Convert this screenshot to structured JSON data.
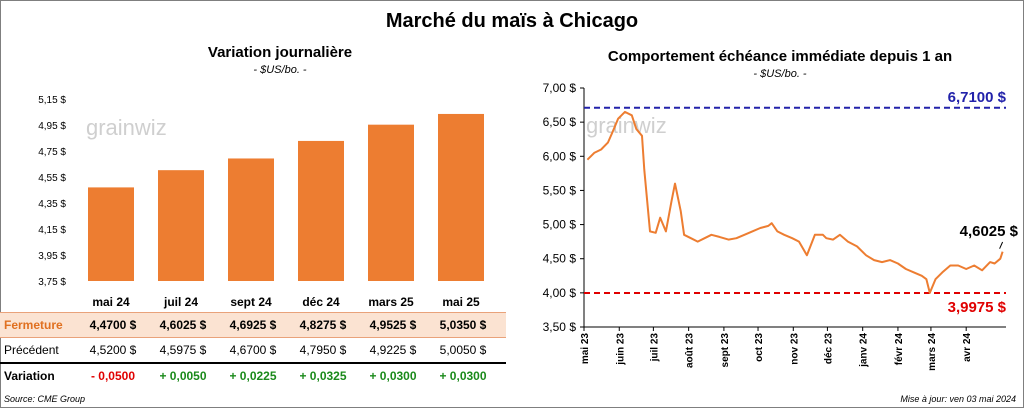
{
  "title": "Marché du maïs à Chicago",
  "left_panel": {
    "title": "Variation  journalière",
    "unit": "- $US/bo. -",
    "watermark": "grainwiz"
  },
  "right_panel": {
    "title": "Comportement  échéance immédiate depuis 1 an",
    "unit": "- $US/bo. -",
    "watermark": "grainwiz"
  },
  "table": {
    "rows": [
      {
        "label": "Fermeture",
        "values": [
          "4,4700  $",
          "4,6025  $",
          "4,6925  $",
          "4,8275  $",
          "4,9525  $",
          "5,0350  $"
        ]
      },
      {
        "label": "Précédent",
        "values": [
          "4,5200  $",
          "4,5975  $",
          "4,6700  $",
          "4,7950  $",
          "4,9225  $",
          "5,0050  $"
        ]
      },
      {
        "label": "Variation",
        "values": [
          "- 0,0500",
          "+ 0,0050",
          "+ 0,0225",
          "+ 0,0325",
          "+ 0,0300",
          "+ 0,0300"
        ]
      }
    ]
  },
  "footer": {
    "source": "Source: CME Group",
    "updated": "Mise à jour: ven 03 mai 2024"
  },
  "colors": {
    "bar": "#ed7d31",
    "line": "#ed7d31",
    "high": "#2222aa",
    "low": "#e00000",
    "negative": "#e00000",
    "positive": "#1a8a1a"
  },
  "chart_data": [
    {
      "type": "bar",
      "title": "Variation  journalière",
      "categories": [
        "mai 24",
        "juil 24",
        "sept 24",
        "déc 24",
        "mars 25",
        "mai 25"
      ],
      "values": [
        4.47,
        4.6025,
        4.6925,
        4.8275,
        4.9525,
        5.035
      ],
      "ylim": [
        3.75,
        5.15
      ],
      "yticks": [
        "3,75 $",
        "3,95 $",
        "4,15 $",
        "4,35 $",
        "4,55 $",
        "4,75 $",
        "4,95 $",
        "5,15 $"
      ],
      "grid": false
    },
    {
      "type": "line",
      "title": "Comportement  échéance immédiate depuis 1 an",
      "ylim": [
        3.5,
        7.0
      ],
      "yticks": [
        "3,50 $",
        "4,00 $",
        "4,50 $",
        "5,00 $",
        "5,50 $",
        "6,00 $",
        "6,50 $",
        "7,00 $"
      ],
      "xticks": [
        "mai 23",
        "juin 23",
        "juil 23",
        "août 23",
        "sept 23",
        "oct 23",
        "nov 23",
        "déc 23",
        "janv 24",
        "févr 24",
        "mars 24",
        "avr 24"
      ],
      "x": [
        "2023-05-04",
        "2023-05-10",
        "2023-05-16",
        "2023-05-22",
        "2023-05-26",
        "2023-05-31",
        "2023-06-06",
        "2023-06-12",
        "2023-06-16",
        "2023-06-21",
        "2023-06-23",
        "2023-06-28",
        "2023-07-03",
        "2023-07-07",
        "2023-07-12",
        "2023-07-17",
        "2023-07-20",
        "2023-07-25",
        "2023-07-28",
        "2023-08-03",
        "2023-08-09",
        "2023-08-15",
        "2023-08-21",
        "2023-08-28",
        "2023-09-05",
        "2023-09-12",
        "2023-09-19",
        "2023-09-26",
        "2023-10-03",
        "2023-10-10",
        "2023-10-13",
        "2023-10-18",
        "2023-10-24",
        "2023-10-31",
        "2023-11-06",
        "2023-11-13",
        "2023-11-20",
        "2023-11-27",
        "2023-11-30",
        "2023-12-06",
        "2023-12-12",
        "2023-12-19",
        "2023-12-27",
        "2024-01-04",
        "2024-01-11",
        "2024-01-18",
        "2024-01-25",
        "2024-02-01",
        "2024-02-08",
        "2024-02-15",
        "2024-02-22",
        "2024-02-26",
        "2024-02-29",
        "2024-03-05",
        "2024-03-11",
        "2024-03-18",
        "2024-03-25",
        "2024-04-01",
        "2024-04-08",
        "2024-04-15",
        "2024-04-22",
        "2024-04-26",
        "2024-05-01",
        "2024-05-03"
      ],
      "y": [
        5.95,
        6.05,
        6.1,
        6.2,
        6.35,
        6.55,
        6.65,
        6.6,
        6.4,
        6.3,
        5.8,
        4.9,
        4.88,
        5.1,
        4.9,
        5.35,
        5.6,
        5.2,
        4.85,
        4.8,
        4.75,
        4.8,
        4.85,
        4.82,
        4.78,
        4.8,
        4.85,
        4.9,
        4.95,
        4.98,
        5.02,
        4.9,
        4.85,
        4.8,
        4.75,
        4.55,
        4.85,
        4.85,
        4.8,
        4.78,
        4.85,
        4.75,
        4.68,
        4.55,
        4.48,
        4.45,
        4.48,
        4.43,
        4.35,
        4.3,
        4.25,
        4.2,
        4.0,
        4.2,
        4.3,
        4.4,
        4.4,
        4.35,
        4.4,
        4.33,
        4.45,
        4.43,
        4.5,
        4.6025
      ],
      "reference_lines": [
        {
          "label": "6,7100 $",
          "value": 6.71
        },
        {
          "label": "3,9975 $",
          "value": 3.9975
        }
      ],
      "last_label": "4,6025 $",
      "grid": false
    }
  ]
}
